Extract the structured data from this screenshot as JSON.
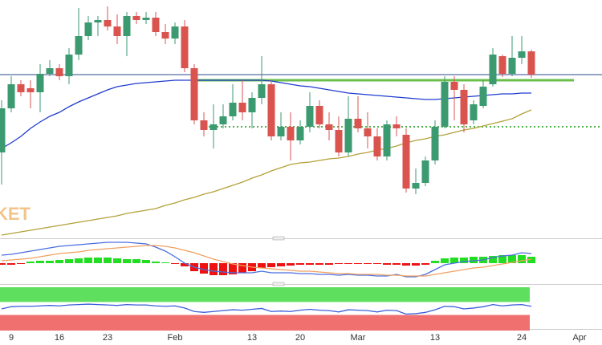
{
  "chart_data": [
    {
      "type": "candlestick",
      "categories": [
        null,
        "9",
        null,
        null,
        null,
        null,
        "16",
        null,
        null,
        null,
        null,
        "23",
        null,
        null,
        null,
        null,
        null,
        null,
        "Feb",
        null,
        null,
        null,
        null,
        null,
        null,
        null,
        "13",
        null,
        null,
        null,
        null,
        "20",
        null,
        null,
        null,
        null,
        null,
        "Mar",
        null,
        null,
        null,
        null,
        null,
        null,
        null,
        "13",
        null,
        null,
        null,
        null,
        null,
        null,
        null,
        null,
        "24",
        null,
        null,
        null,
        null,
        null,
        "Apr"
      ],
      "open": [
        110,
        165,
        195,
        190,
        185,
        208,
        215,
        205,
        232,
        255,
        272,
        275,
        267,
        255,
        280,
        275,
        278,
        260,
        252,
        267,
        215,
        150,
        138,
        145,
        155,
        172,
        160,
        178,
        195,
        130,
        142,
        125,
        142,
        168,
        145,
        138,
        110,
        152,
        140,
        130,
        105,
        145,
        132,
        65,
        72,
        100,
        142,
        198,
        188,
        150,
        168,
        195,
        230,
        208,
        228,
        236,
        null,
        null,
        null,
        null,
        null
      ],
      "high": [
        175,
        205,
        200,
        200,
        220,
        225,
        220,
        240,
        290,
        280,
        280,
        292,
        282,
        285,
        285,
        285,
        285,
        270,
        272,
        275,
        220,
        160,
        170,
        170,
        195,
        200,
        185,
        230,
        200,
        160,
        160,
        150,
        185,
        175,
        160,
        155,
        180,
        180,
        160,
        140,
        150,
        155,
        140,
        90,
        105,
        150,
        205,
        205,
        195,
        175,
        200,
        240,
        232,
        255,
        255,
        238,
        null,
        null,
        null,
        null,
        null
      ],
      "low": [
        70,
        160,
        180,
        165,
        160,
        205,
        200,
        195,
        225,
        250,
        255,
        262,
        245,
        230,
        270,
        270,
        255,
        245,
        245,
        210,
        145,
        130,
        115,
        140,
        150,
        150,
        140,
        170,
        125,
        125,
        100,
        120,
        135,
        140,
        125,
        105,
        105,
        135,
        115,
        100,
        100,
        130,
        60,
        58,
        68,
        95,
        140,
        150,
        135,
        145,
        165,
        192,
        204,
        205,
        220,
        203,
        null,
        null,
        null,
        null,
        null
      ],
      "close": [
        165,
        195,
        185,
        185,
        208,
        215,
        205,
        232,
        255,
        272,
        275,
        267,
        255,
        280,
        275,
        278,
        260,
        252,
        267,
        215,
        150,
        138,
        145,
        155,
        172,
        160,
        178,
        195,
        130,
        142,
        125,
        142,
        168,
        145,
        138,
        110,
        152,
        140,
        130,
        105,
        145,
        140,
        65,
        72,
        100,
        142,
        198,
        188,
        145,
        170,
        192,
        232,
        208,
        228,
        236,
        207,
        null,
        null,
        null,
        null,
        null
      ],
      "up_color": "#3b9a70",
      "down_color": "#d9534f",
      "lines": [
        {
          "color": "#1f3ccf",
          "values": [
            115,
            122,
            130,
            140,
            148,
            155,
            160,
            167,
            173,
            178,
            183,
            188,
            192,
            194,
            196,
            197,
            198,
            199,
            200,
            200,
            200,
            200,
            200,
            200,
            200,
            200,
            200,
            200,
            199,
            197,
            195,
            193,
            192,
            190,
            188,
            186,
            184,
            183,
            182,
            181,
            180,
            179,
            178,
            177,
            176,
            176,
            177,
            178,
            179,
            180,
            181,
            182,
            183,
            183,
            184,
            184,
            null,
            null,
            null,
            null,
            null
          ]
        },
        {
          "color": "#b3a13a",
          "values": [
            7,
            9,
            11,
            13,
            15,
            17,
            19,
            21,
            23,
            25,
            27,
            29,
            31,
            34,
            36,
            38,
            40,
            44,
            47,
            51,
            54,
            58,
            61,
            65,
            69,
            73,
            78,
            82,
            87,
            91,
            95,
            97,
            98,
            100,
            102,
            103,
            105,
            108,
            110,
            113,
            115,
            118,
            122,
            125,
            127,
            130,
            132,
            135,
            138,
            140,
            143,
            146,
            149,
            152,
            158,
            163,
            null,
            null,
            null,
            null,
            null
          ]
        }
      ],
      "levels": [
        {
          "value": 207,
          "color": "#2b4a8a",
          "style": "thin"
        },
        {
          "value": 200,
          "color": "#6abf4b",
          "style": "thick"
        },
        {
          "value": 142,
          "color": "#4fb04a",
          "style": "dotted"
        }
      ],
      "ylim": [
        3,
        300
      ],
      "watermark": "KET"
    },
    {
      "type": "macd",
      "histogram": [
        -2,
        -2,
        -1,
        2,
        3,
        3,
        4,
        5,
        6,
        7,
        7,
        7,
        6,
        5,
        5,
        4,
        2,
        1,
        -1,
        -4,
        -10,
        -13,
        -15,
        -15,
        -14,
        -12,
        -10,
        -6,
        -5,
        -4,
        -3,
        -2,
        -2,
        -2,
        -2,
        -1,
        -1,
        -1,
        -1,
        -1,
        -2,
        -2,
        -3,
        -3,
        -2,
        3,
        6,
        7,
        7,
        8,
        8,
        9,
        10,
        10,
        10,
        8,
        null,
        null,
        null,
        null,
        null
      ],
      "up_color": "#22dd22",
      "down_color": "#ee1111",
      "lines": [
        {
          "color": "#4a6ee0",
          "values": [
            10,
            11,
            13,
            15,
            17,
            19,
            21,
            22,
            23,
            24,
            25,
            26,
            26,
            26,
            25,
            24,
            20,
            15,
            8,
            0,
            -5,
            -8,
            -10,
            -11,
            -12,
            -12,
            -12,
            -10,
            -12,
            -12,
            -12,
            -13,
            -13,
            -14,
            -14,
            -15,
            -14,
            -15,
            -15,
            -16,
            -16,
            -14,
            -17,
            -17,
            -14,
            -8,
            -2,
            0,
            2,
            3,
            4,
            7,
            9,
            10,
            13,
            12,
            null,
            null,
            null,
            null,
            null
          ]
        },
        {
          "color": "#f0a060",
          "values": [
            3,
            4,
            5,
            6,
            8,
            10,
            12,
            13,
            14,
            16,
            17,
            18,
            19,
            20,
            21,
            22,
            22,
            21,
            19,
            16,
            13,
            9,
            5,
            2,
            -1,
            -3,
            -5,
            -6,
            -7,
            -8,
            -9,
            -10,
            -10,
            -11,
            -12,
            -13,
            -13,
            -14,
            -14,
            -14,
            -15,
            -15,
            -16,
            -16,
            -16,
            -14,
            -12,
            -10,
            -8,
            -6,
            -5,
            -3,
            -1,
            1,
            3,
            5,
            null,
            null,
            null,
            null,
            null
          ]
        }
      ],
      "ylim": [
        -22,
        28
      ]
    },
    {
      "type": "rsi",
      "values": [
        50,
        55,
        56,
        56,
        57,
        58,
        57,
        59,
        60,
        61,
        60,
        59,
        58,
        60,
        59,
        59,
        57,
        56,
        57,
        52,
        44,
        42,
        44,
        46,
        48,
        47,
        49,
        51,
        44,
        45,
        44,
        47,
        49,
        47,
        46,
        43,
        48,
        47,
        46,
        43,
        47,
        46,
        38,
        39,
        42,
        48,
        56,
        55,
        50,
        52,
        55,
        60,
        57,
        59,
        60,
        56,
        null,
        null,
        null,
        null,
        null
      ],
      "color": "#3b5fd8",
      "zones": [
        {
          "from": 66,
          "to": 100,
          "color": "#5ee05e"
        },
        {
          "from": 0,
          "to": 36,
          "color": "#f07070"
        }
      ],
      "ylim": [
        0,
        100
      ]
    }
  ]
}
